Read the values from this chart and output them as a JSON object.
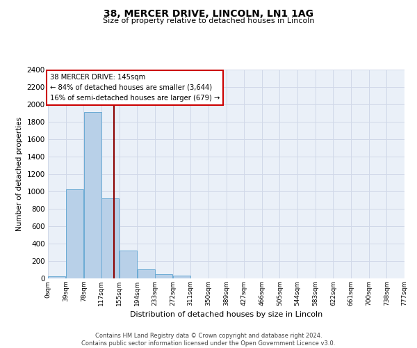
{
  "title": "38, MERCER DRIVE, LINCOLN, LN1 1AG",
  "subtitle": "Size of property relative to detached houses in Lincoln",
  "xlabel": "Distribution of detached houses by size in Lincoln",
  "ylabel": "Number of detached properties",
  "bin_labels": [
    "0sqm",
    "39sqm",
    "78sqm",
    "117sqm",
    "155sqm",
    "194sqm",
    "233sqm",
    "272sqm",
    "311sqm",
    "350sqm",
    "389sqm",
    "427sqm",
    "466sqm",
    "505sqm",
    "544sqm",
    "583sqm",
    "622sqm",
    "661sqm",
    "700sqm",
    "738sqm",
    "777sqm"
  ],
  "bar_heights": [
    25,
    1025,
    1910,
    920,
    320,
    105,
    50,
    30,
    0,
    0,
    0,
    0,
    0,
    0,
    0,
    0,
    0,
    0,
    0,
    0
  ],
  "bar_color": "#b8d0e8",
  "bar_edge_color": "#6aaad4",
  "bar_edge_width": 0.7,
  "property_line_x": 145,
  "property_line_color": "#8b0000",
  "annotation_line1": "38 MERCER DRIVE: 145sqm",
  "annotation_line2": "← 84% of detached houses are smaller (3,644)",
  "annotation_line3": "16% of semi-detached houses are larger (679) →",
  "annotation_box_color": "#ffffff",
  "annotation_box_edge_color": "#cc0000",
  "ylim": [
    0,
    2400
  ],
  "yticks": [
    0,
    200,
    400,
    600,
    800,
    1000,
    1200,
    1400,
    1600,
    1800,
    2000,
    2200,
    2400
  ],
  "grid_color": "#d0d8e8",
  "background_color": "#eaf0f8",
  "footer_text": "Contains HM Land Registry data © Crown copyright and database right 2024.\nContains public sector information licensed under the Open Government Licence v3.0.",
  "bin_width": 39,
  "num_bins": 20,
  "xmin": 0,
  "xmax": 780
}
